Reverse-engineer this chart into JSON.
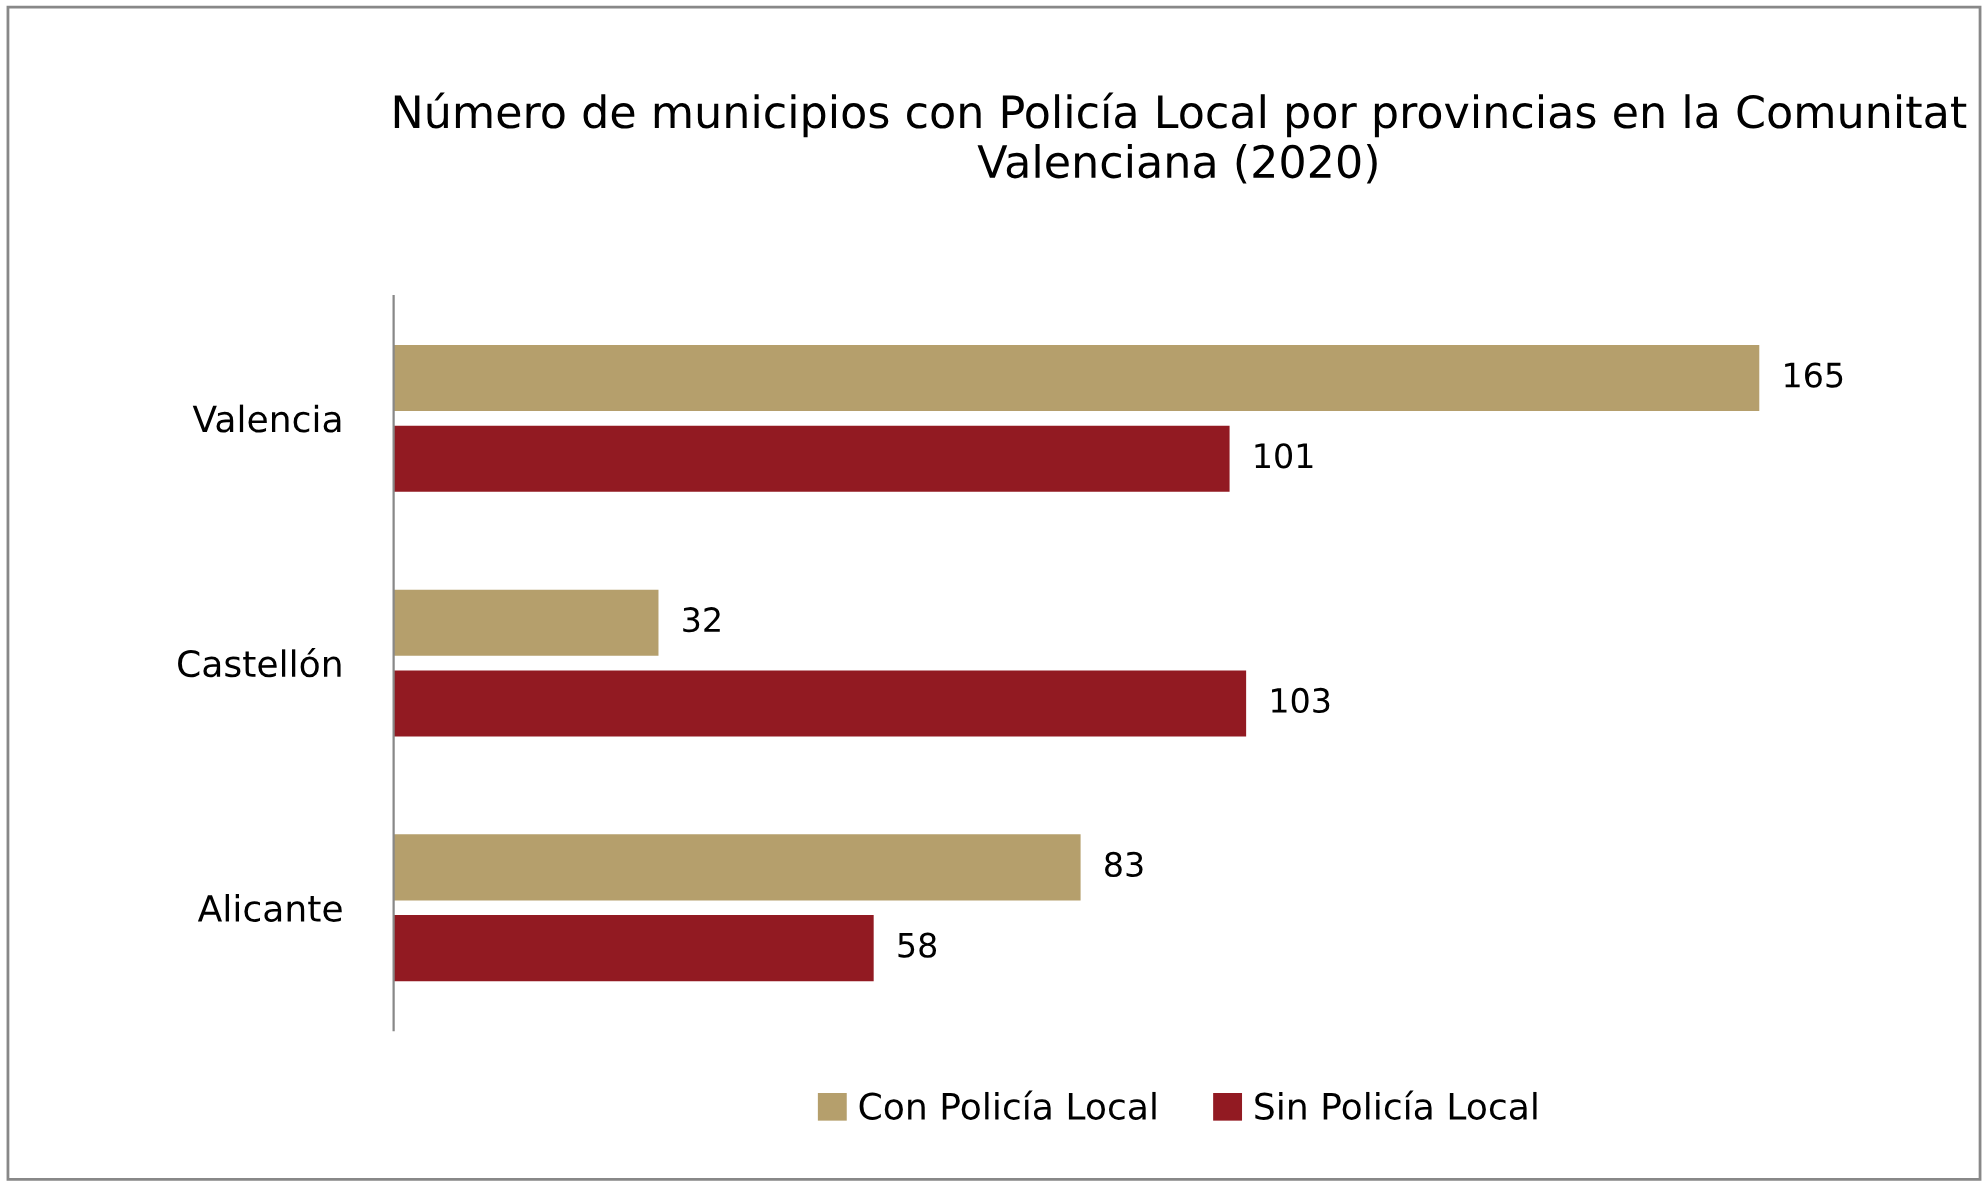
{
  "chart_data": {
    "type": "bar",
    "orientation": "horizontal",
    "title": "Número de municipios con Policía Local por provincias en la Comunitat Valenciana (2020)",
    "categories": [
      "Valencia",
      "Castellón",
      "Alicante"
    ],
    "series": [
      {
        "name": "Con Policía Local",
        "color": "#b59f6c",
        "values": [
          165,
          32,
          83
        ]
      },
      {
        "name": "Sin Policía Local",
        "color": "#921a22",
        "values": [
          101,
          103,
          58
        ]
      }
    ],
    "data_labels": true,
    "legend": "bottom",
    "grid": false
  }
}
